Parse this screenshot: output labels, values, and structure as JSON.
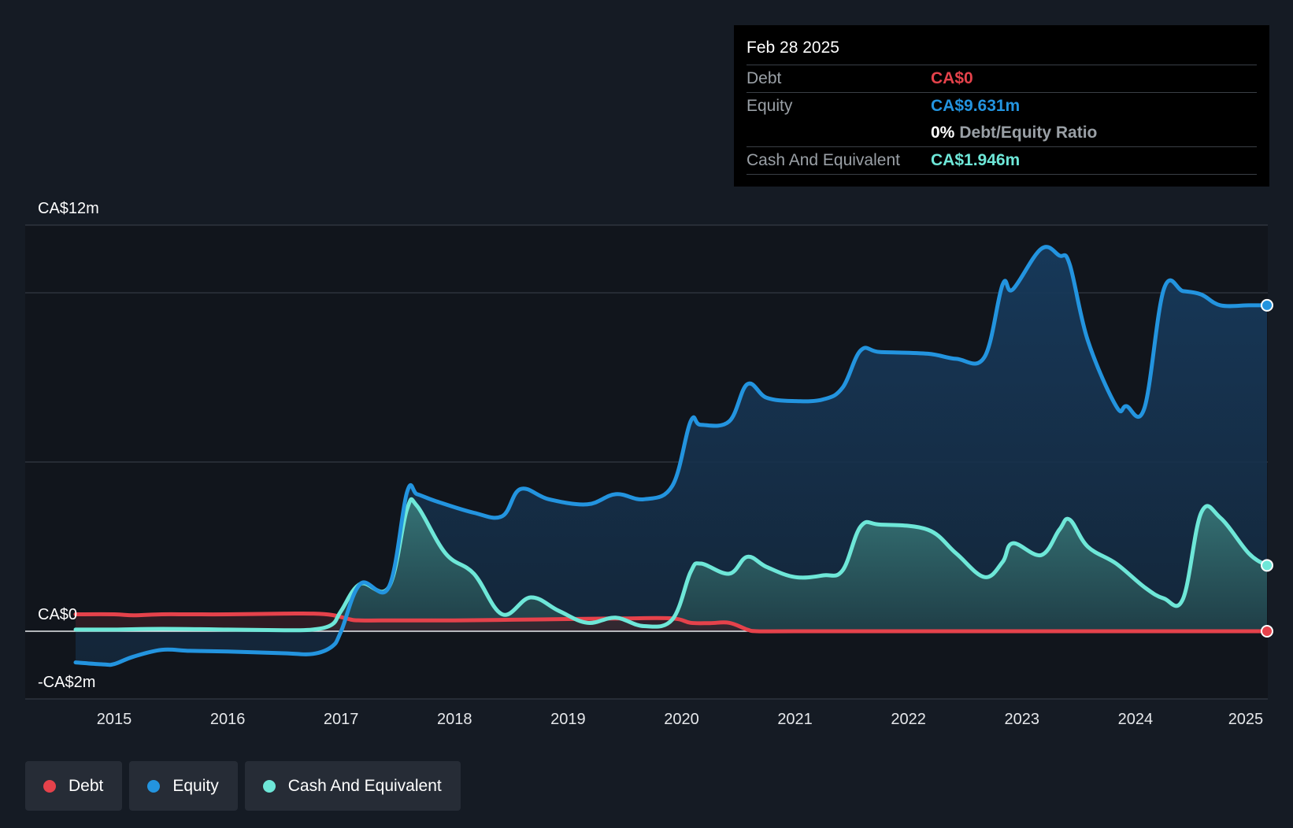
{
  "tooltip": {
    "date": "Feb 28 2025",
    "rows": [
      {
        "label": "Debt",
        "value": "CA$0",
        "color": "#e5424b"
      },
      {
        "label": "Equity",
        "value": "CA$9.631m",
        "color": "#2394df"
      },
      {
        "label": "",
        "value": "0%",
        "extra": "Debt/Equity Ratio"
      },
      {
        "label": "Cash And Equivalent",
        "value": "CA$1.946m",
        "color": "#6ee7d8"
      }
    ]
  },
  "legend": [
    {
      "label": "Debt",
      "color": "#e5424b"
    },
    {
      "label": "Equity",
      "color": "#2394df"
    },
    {
      "label": "Cash And Equivalent",
      "color": "#6ee7d8"
    }
  ],
  "chart_data": {
    "type": "area",
    "title": "",
    "xlabel": "",
    "ylabel": "",
    "ylim": [
      -2,
      12
    ],
    "xlim": [
      2014.66,
      2025.16
    ],
    "y_tick_labels": [
      {
        "value": 12,
        "label": "CA$12m"
      },
      {
        "value": 0,
        "label": "CA$0"
      },
      {
        "value": -2,
        "label": "-CA$2m"
      }
    ],
    "x_ticks": [
      2015,
      2016,
      2017,
      2018,
      2019,
      2020,
      2021,
      2022,
      2023,
      2024,
      2025
    ],
    "x_tick_labels": [
      "2015",
      "2016",
      "2017",
      "2018",
      "2019",
      "2020",
      "2021",
      "2022",
      "2023",
      "2024",
      "2025"
    ],
    "grid": true,
    "legend_position": "bottom-left",
    "series": [
      {
        "name": "Debt",
        "color": "#e5424b",
        "x": [
          2014.66,
          2015.0,
          2015.17,
          2015.42,
          2015.67,
          2016.0,
          2016.5,
          2016.75,
          2016.92,
          2017.08,
          2017.17,
          2017.5,
          2018.0,
          2018.5,
          2019.0,
          2019.5,
          2019.92,
          2020.08,
          2020.25,
          2020.42,
          2020.58,
          2020.67,
          2021.0,
          2022.0,
          2023.0,
          2024.0,
          2025.16
        ],
        "values": [
          0.5,
          0.5,
          0.47,
          0.5,
          0.5,
          0.5,
          0.52,
          0.52,
          0.48,
          0.35,
          0.32,
          0.32,
          0.32,
          0.34,
          0.36,
          0.38,
          0.38,
          0.25,
          0.24,
          0.25,
          0.05,
          0.0,
          0.0,
          0.0,
          0.0,
          0.0,
          0.0
        ]
      },
      {
        "name": "Equity",
        "color": "#2394df",
        "x": [
          2014.66,
          2014.9,
          2015.0,
          2015.17,
          2015.42,
          2015.67,
          2016.0,
          2016.5,
          2016.75,
          2016.92,
          2017.0,
          2017.17,
          2017.42,
          2017.58,
          2017.67,
          2017.83,
          2018.17,
          2018.42,
          2018.58,
          2018.83,
          2019.17,
          2019.42,
          2019.67,
          2019.92,
          2020.08,
          2020.17,
          2020.42,
          2020.58,
          2020.75,
          2021.0,
          2021.25,
          2021.42,
          2021.58,
          2021.75,
          2022.17,
          2022.42,
          2022.67,
          2022.83,
          2022.92,
          2023.17,
          2023.33,
          2023.42,
          2023.58,
          2023.83,
          2023.92,
          2024.08,
          2024.25,
          2024.42,
          2024.58,
          2024.75,
          2025.0,
          2025.16
        ],
        "values": [
          -0.92,
          -0.98,
          -0.97,
          -0.75,
          -0.55,
          -0.58,
          -0.6,
          -0.65,
          -0.67,
          -0.45,
          0.0,
          1.4,
          1.3,
          4.1,
          4.05,
          3.85,
          3.5,
          3.4,
          4.2,
          3.9,
          3.75,
          4.05,
          3.9,
          4.3,
          6.2,
          6.1,
          6.2,
          7.3,
          6.9,
          6.8,
          6.85,
          7.2,
          8.3,
          8.25,
          8.2,
          8.05,
          8.1,
          10.25,
          10.1,
          11.3,
          11.1,
          10.85,
          8.6,
          6.65,
          6.65,
          6.6,
          10.1,
          10.05,
          9.95,
          9.631,
          9.631,
          9.631
        ]
      },
      {
        "name": "Cash And Equivalent",
        "color": "#6ee7d8",
        "x": [
          2014.66,
          2015.0,
          2015.42,
          2016.0,
          2016.5,
          2016.75,
          2016.92,
          2017.0,
          2017.17,
          2017.42,
          2017.58,
          2017.67,
          2017.92,
          2018.17,
          2018.42,
          2018.67,
          2018.92,
          2019.17,
          2019.42,
          2019.67,
          2019.92,
          2020.08,
          2020.17,
          2020.42,
          2020.58,
          2020.75,
          2021.0,
          2021.25,
          2021.42,
          2021.58,
          2021.75,
          2022.17,
          2022.42,
          2022.67,
          2022.83,
          2022.92,
          2023.17,
          2023.33,
          2023.42,
          2023.58,
          2023.83,
          2024.08,
          2024.25,
          2024.42,
          2024.58,
          2024.75,
          2025.0,
          2025.16
        ],
        "values": [
          0.05,
          0.05,
          0.07,
          0.05,
          0.03,
          0.05,
          0.2,
          0.6,
          1.4,
          1.3,
          3.6,
          3.7,
          2.3,
          1.7,
          0.5,
          1.0,
          0.6,
          0.25,
          0.4,
          0.15,
          0.35,
          1.75,
          2.0,
          1.7,
          2.2,
          1.9,
          1.6,
          1.65,
          1.8,
          3.1,
          3.15,
          3.0,
          2.3,
          1.6,
          2.05,
          2.6,
          2.25,
          3.0,
          3.3,
          2.5,
          2.0,
          1.3,
          0.97,
          0.96,
          3.5,
          3.35,
          2.3,
          1.946
        ]
      }
    ]
  }
}
